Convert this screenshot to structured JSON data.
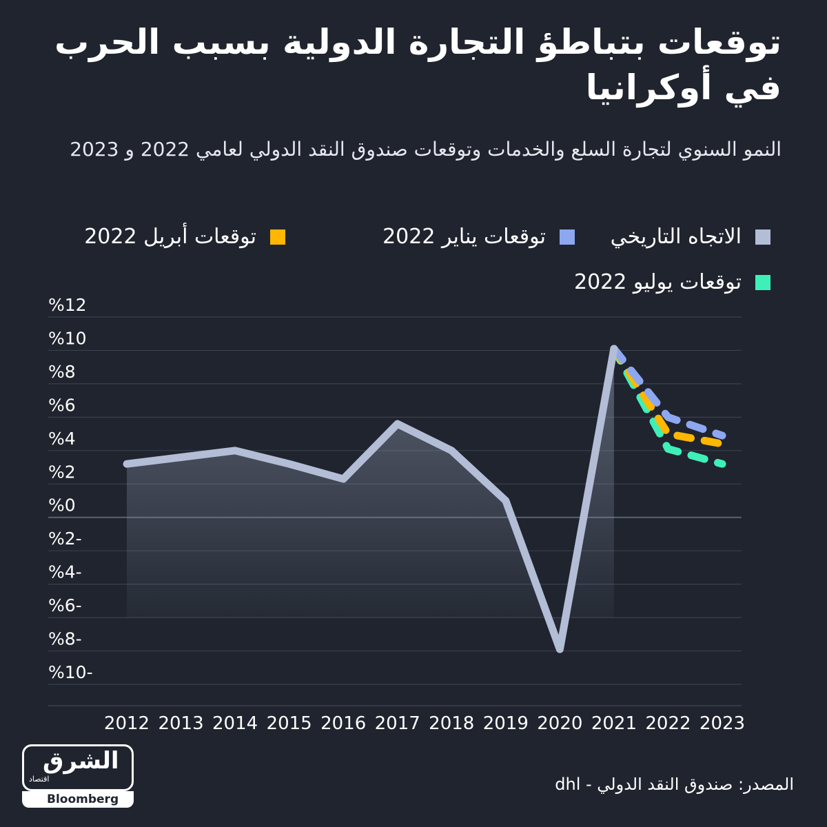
{
  "title": "توقعات بتباطؤ التجارة الدولية بسبب الحرب في أوكرانيا",
  "subtitle": "النمو السنوي لتجارة السلع والخدمات وتوقعات صندوق النقد الدولي لعامي 2022 و 2023",
  "legend": [
    {
      "label": "الاتجاه التاريخي",
      "color": "#b3bdd6"
    },
    {
      "label": "توقعات يناير 2022",
      "color": "#8da8f0"
    },
    {
      "label": "توقعات أبريل 2022",
      "color": "#ffb703"
    },
    {
      "label": "توقعات يوليو 2022",
      "color": "#3ef0b8"
    }
  ],
  "source": "المصدر: صندوق النقد الدولي - dhl",
  "logo": {
    "arabic": "الشرق",
    "sub": "اقتصاد",
    "english": "Bloomberg"
  },
  "chart_data": {
    "type": "line",
    "x": [
      2012,
      2013,
      2014,
      2015,
      2016,
      2017,
      2018,
      2019,
      2020,
      2021,
      2022,
      2023
    ],
    "ylim": [
      -10,
      12
    ],
    "y_ticks": [
      12,
      10,
      8,
      6,
      4,
      2,
      0,
      -2,
      -4,
      -6,
      -8,
      -10
    ],
    "y_tick_labels": [
      "%12",
      "%10",
      "%8",
      "%6",
      "%4",
      "%2",
      "%0",
      "%2-",
      "%4-",
      "%6-",
      "%8-",
      "%10-"
    ],
    "x_tick_labels": [
      "2012",
      "2013",
      "2014",
      "2015",
      "2016",
      "2017",
      "2018",
      "2019",
      "2020",
      "2021",
      "2022",
      "2023"
    ],
    "series": [
      {
        "name": "الاتجاه التاريخي",
        "style": "solid",
        "color": "#b3bdd6",
        "x": [
          2012,
          2013,
          2014,
          2015,
          2016,
          2017,
          2018,
          2019,
          2020,
          2021
        ],
        "values": [
          3.2,
          3.6,
          4.0,
          3.2,
          2.3,
          5.6,
          4.0,
          1.0,
          -7.9,
          10.1
        ]
      },
      {
        "name": "توقعات يناير 2022",
        "style": "dashed",
        "color": "#8da8f0",
        "x": [
          2021,
          2022,
          2023
        ],
        "values": [
          10.1,
          6.0,
          4.9
        ]
      },
      {
        "name": "توقعات أبريل 2022",
        "style": "dashed",
        "color": "#ffb703",
        "x": [
          2021,
          2022,
          2023
        ],
        "values": [
          10.1,
          5.0,
          4.4
        ]
      },
      {
        "name": "توقعات يوليو 2022",
        "style": "dashed",
        "color": "#3ef0b8",
        "x": [
          2021,
          2022,
          2023
        ],
        "values": [
          10.1,
          4.1,
          3.2
        ]
      }
    ],
    "grid": true
  }
}
